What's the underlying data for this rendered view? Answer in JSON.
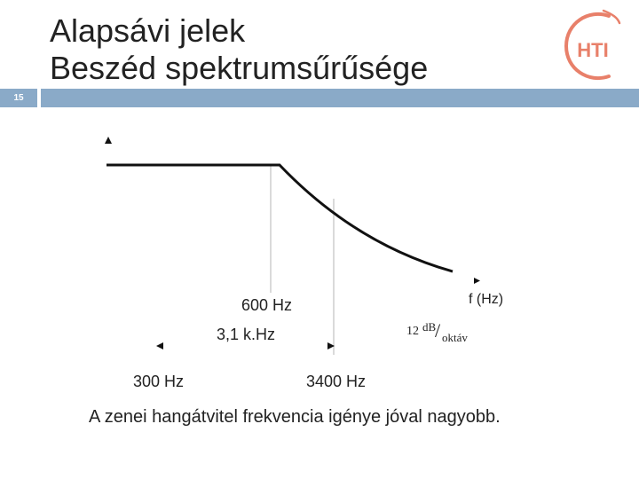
{
  "slide": {
    "number": "15",
    "title_line1": "Alapsávi jelek",
    "title_line2": "Beszéd spektrumsűrűsége",
    "logo_text": "HTI",
    "accent_color": "#8aaac8",
    "logo_color": "#e8806a"
  },
  "diagram": {
    "label_600": "600 Hz",
    "label_3k1": "3,1 k.Hz",
    "label_f": "f (Hz)",
    "label_300": "300 Hz",
    "label_3400": "3400 Hz",
    "rolloff_num": "12",
    "rolloff_db": "dB",
    "rolloff_slash": "/",
    "rolloff_unit": "oktáv"
  },
  "caption": "A zenei hangátvitel frekvencia igénye jóval nagyobb."
}
